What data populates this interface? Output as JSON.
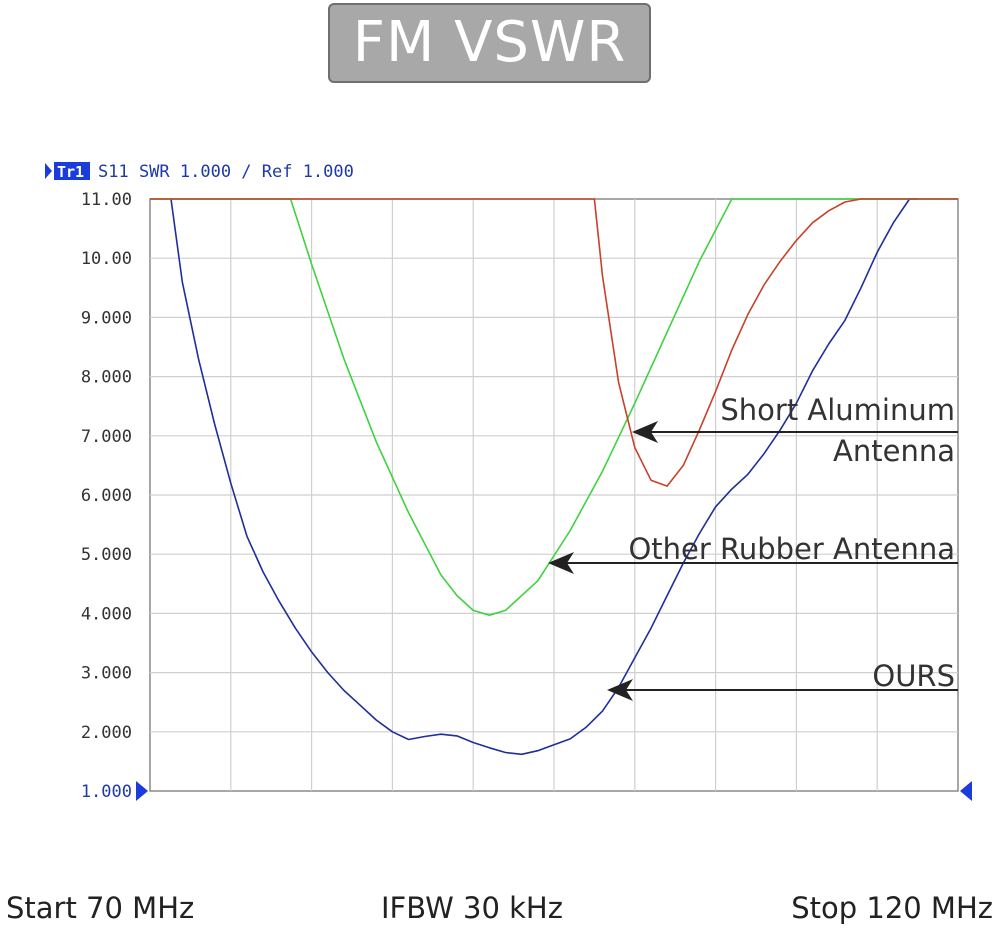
{
  "title": "FM VSWR",
  "trace_header": {
    "trace_id": "Tr1",
    "text": "S11 SWR 1.000 / Ref 1.000"
  },
  "footer": {
    "start": "Start 70 MHz",
    "ifbw": "IFBW 30 kHz",
    "stop": "Stop 120 MHz"
  },
  "annotations": [
    {
      "lines": [
        "Short Aluminum",
        "Antenna"
      ],
      "series": "Short Aluminum Antenna"
    },
    {
      "lines": [
        "Other Rubber Antenna"
      ],
      "series": "Other Rubber Antenna"
    },
    {
      "lines": [
        "OURS"
      ],
      "series": "OURS"
    }
  ],
  "chart_data": {
    "type": "line",
    "xlim": [
      70,
      120
    ],
    "ylim": [
      1.0,
      11.0
    ],
    "yticks": [
      11.0,
      10.0,
      9.0,
      8.0,
      7.0,
      6.0,
      5.0,
      4.0,
      3.0,
      2.0,
      1.0
    ],
    "ytick_labels": [
      "11.00",
      "10.00",
      "9.000",
      "8.000",
      "7.000",
      "6.000",
      "5.000",
      "4.000",
      "3.000",
      "2.000",
      "1.000"
    ],
    "grid": true,
    "series": [
      {
        "name": "OURS",
        "color": "#1e2f9a",
        "x": [
          71.3,
          72.0,
          73.0,
          74.0,
          75.0,
          76.0,
          77.0,
          78.0,
          79.0,
          80.0,
          81.0,
          82.0,
          83.0,
          84.0,
          85.0,
          86.0,
          87.0,
          88.0,
          89.0,
          90.0,
          91.0,
          92.0,
          93.0,
          94.0,
          95.0,
          96.0,
          97.0,
          98.0,
          99.0,
          100.0,
          101.0,
          102.0,
          103.0,
          104.0,
          105.0,
          106.0,
          107.0,
          108.0,
          109.0,
          110.0,
          111.0,
          112.0,
          113.0,
          114.0,
          115.0,
          116.0,
          117.0,
          117.5
        ],
        "y": [
          11.0,
          9.6,
          8.3,
          7.2,
          6.2,
          5.3,
          4.7,
          4.2,
          3.75,
          3.35,
          3.0,
          2.7,
          2.45,
          2.2,
          2.0,
          1.87,
          1.92,
          1.96,
          1.93,
          1.82,
          1.73,
          1.65,
          1.62,
          1.68,
          1.78,
          1.88,
          2.08,
          2.35,
          2.75,
          3.25,
          3.75,
          4.3,
          4.85,
          5.35,
          5.8,
          6.1,
          6.35,
          6.7,
          7.1,
          7.55,
          8.1,
          8.55,
          8.95,
          9.5,
          10.1,
          10.6,
          11.0,
          11.0
        ]
      },
      {
        "name": "Other Rubber Antenna",
        "color": "#3fd23f",
        "x": [
          70.0,
          72.0,
          75.0,
          78.7,
          80.0,
          82.0,
          84.0,
          86.0,
          88.0,
          89.0,
          90.0,
          91.0,
          92.0,
          94.0,
          96.0,
          98.0,
          100.0,
          102.0,
          104.0,
          106.0,
          107.0,
          108.3,
          110.0,
          115.0,
          120.0
        ],
        "y": [
          11.0,
          11.0,
          11.0,
          11.0,
          9.9,
          8.3,
          6.9,
          5.7,
          4.65,
          4.3,
          4.05,
          3.97,
          4.05,
          4.55,
          5.4,
          6.4,
          7.55,
          8.75,
          9.95,
          11.0,
          11.0,
          11.0,
          11.0,
          11.0,
          11.0
        ]
      },
      {
        "name": "Short Aluminum Antenna",
        "color": "#c8412a",
        "x": [
          70.0,
          80.0,
          90.0,
          97.5,
          98.0,
          99.0,
          100.0,
          101.0,
          102.0,
          103.0,
          104.0,
          105.0,
          106.0,
          107.0,
          108.0,
          109.0,
          110.0,
          111.0,
          112.0,
          113.0,
          114.0,
          115.0,
          116.0,
          117.0,
          120.0
        ],
        "y": [
          11.0,
          11.0,
          11.0,
          11.0,
          9.7,
          7.9,
          6.8,
          6.25,
          6.15,
          6.5,
          7.1,
          7.75,
          8.45,
          9.05,
          9.55,
          9.95,
          10.3,
          10.6,
          10.8,
          10.95,
          11.0,
          11.0,
          11.0,
          11.0,
          11.0
        ]
      }
    ]
  }
}
